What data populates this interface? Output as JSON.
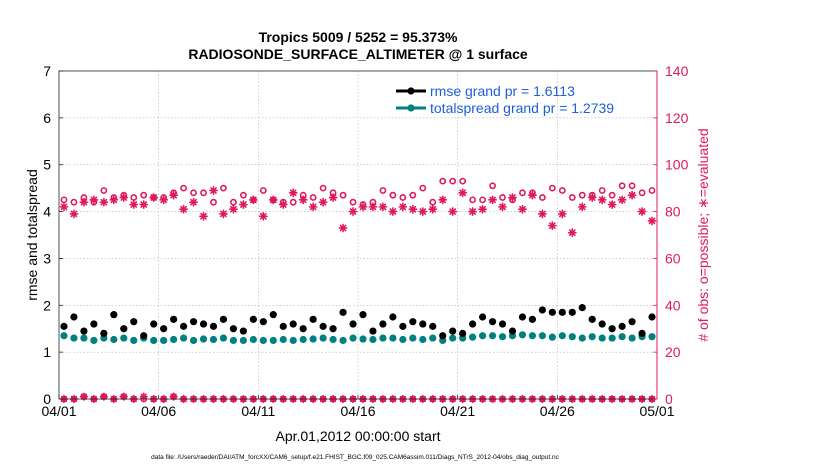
{
  "chart_data": {
    "type": "scatter",
    "title_line1": "Tropics 5009 / 5252 = 95.373%",
    "title_line2": "RADIOSONDE_SURFACE_ALTIMETER @ 1 surface",
    "xlabel": "Apr.01,2012 00:00:00 start",
    "ylabel_left": "rmse and totalspread",
    "ylabel_right": "# of obs: o=possible; ∗=evaluated",
    "footer": "data file: /Users/raeder/DAI/ATM_forcXX/CAM6_setup/f.e21.FHIST_BGC.f09_025.CAM6assim.011/Diags_NTrS_2012-04/obs_diag_output.nc",
    "x_range": [
      1,
      31
    ],
    "x_ticks": [
      1,
      6,
      11,
      16,
      21,
      26,
      31
    ],
    "x_tick_labels": [
      "04/01",
      "04/06",
      "04/11",
      "04/16",
      "04/21",
      "04/26",
      "05/01"
    ],
    "ylim_left": [
      0,
      7
    ],
    "y_ticks_left": [
      "0",
      "1",
      "2",
      "3",
      "4",
      "5",
      "6",
      "7"
    ],
    "ylim_right": [
      0,
      140
    ],
    "y_ticks_right": [
      "0",
      "20",
      "40",
      "60",
      "80",
      "100",
      "120",
      "140"
    ],
    "colors": {
      "rmse": "#000000",
      "spread": "#008080",
      "obs": "#e0195d",
      "legend_text": "#1f5fd6"
    },
    "legend": [
      {
        "name": "rmse",
        "label": "rmse grand pr = 1.6113"
      },
      {
        "name": "spread",
        "label": "totalspread grand pr = 1.2739"
      }
    ],
    "x": [
      1.25,
      1.75,
      2.25,
      2.75,
      3.25,
      3.75,
      4.25,
      4.75,
      5.25,
      5.75,
      6.25,
      6.75,
      7.25,
      7.75,
      8.25,
      8.75,
      9.25,
      9.75,
      10.25,
      10.75,
      11.25,
      11.75,
      12.25,
      12.75,
      13.25,
      13.75,
      14.25,
      14.75,
      15.25,
      15.75,
      16.25,
      16.75,
      17.25,
      17.75,
      18.25,
      18.75,
      19.25,
      19.75,
      20.25,
      20.75,
      21.25,
      21.75,
      22.25,
      22.75,
      23.25,
      23.75,
      24.25,
      24.75,
      25.25,
      25.75,
      26.25,
      26.75,
      27.25,
      27.75,
      28.25,
      28.75,
      29.25,
      29.75,
      30.25,
      30.75
    ],
    "series": [
      {
        "name": "rmse",
        "axis": "left",
        "values": [
          1.55,
          1.75,
          1.45,
          1.6,
          1.4,
          1.8,
          1.5,
          1.65,
          1.35,
          1.6,
          1.5,
          1.7,
          1.55,
          1.65,
          1.6,
          1.55,
          1.7,
          1.5,
          1.45,
          1.7,
          1.65,
          1.8,
          1.55,
          1.6,
          1.5,
          1.7,
          1.55,
          1.5,
          1.85,
          1.6,
          1.8,
          1.45,
          1.6,
          1.75,
          1.55,
          1.65,
          1.6,
          1.55,
          1.35,
          1.45,
          1.4,
          1.6,
          1.75,
          1.65,
          1.6,
          1.45,
          1.75,
          1.7,
          1.9,
          1.85,
          1.85,
          1.85,
          1.95,
          1.7,
          1.6,
          1.5,
          1.55,
          1.65,
          1.4,
          1.75
        ]
      },
      {
        "name": "totalspread",
        "axis": "left",
        "values": [
          1.35,
          1.3,
          1.3,
          1.25,
          1.3,
          1.27,
          1.3,
          1.25,
          1.3,
          1.25,
          1.25,
          1.27,
          1.3,
          1.25,
          1.28,
          1.27,
          1.3,
          1.25,
          1.25,
          1.27,
          1.25,
          1.25,
          1.27,
          1.25,
          1.27,
          1.28,
          1.3,
          1.27,
          1.25,
          1.3,
          1.28,
          1.27,
          1.3,
          1.3,
          1.27,
          1.3,
          1.27,
          1.3,
          1.25,
          1.3,
          1.3,
          1.32,
          1.35,
          1.35,
          1.33,
          1.35,
          1.37,
          1.35,
          1.35,
          1.32,
          1.35,
          1.33,
          1.3,
          1.33,
          1.3,
          1.3,
          1.33,
          1.3,
          1.33,
          1.33
        ]
      },
      {
        "name": "obs_possible",
        "axis": "right",
        "values": [
          85,
          84,
          86,
          84,
          89,
          86,
          87,
          86,
          87,
          86,
          86,
          88,
          90,
          88,
          88,
          84,
          90,
          84,
          87,
          85,
          89,
          85,
          84,
          84,
          87,
          86,
          90,
          88,
          87,
          84,
          83,
          84,
          89,
          87,
          86,
          87,
          90,
          84,
          93,
          93,
          93,
          85,
          85,
          91,
          86,
          85,
          88,
          88,
          86,
          90,
          89,
          86,
          87,
          87,
          89,
          87,
          91,
          91,
          88,
          89
        ]
      },
      {
        "name": "obs_evaluated",
        "axis": "right",
        "values": [
          82,
          79,
          84,
          85,
          84,
          85,
          86,
          83,
          83,
          86,
          85,
          87,
          81,
          84,
          78,
          89,
          79,
          81,
          83,
          85,
          78,
          85,
          83,
          88,
          85,
          82,
          84,
          86,
          73,
          80,
          82,
          82,
          82,
          80,
          82,
          81,
          80,
          81,
          85,
          80,
          88,
          80,
          81,
          85,
          82,
          86,
          81,
          87,
          79,
          74,
          79,
          71,
          82,
          86,
          85,
          83,
          85,
          87,
          80,
          76
        ]
      },
      {
        "name": "obs_possible_bottom",
        "axis": "right",
        "values": [
          0,
          0,
          1,
          0,
          1,
          0,
          1,
          0,
          0,
          0,
          0,
          1,
          0,
          0,
          0,
          0,
          0,
          0,
          0,
          0,
          0,
          0,
          0,
          0,
          0,
          0,
          0,
          0,
          0,
          0,
          0,
          0,
          0,
          0,
          0,
          0,
          0,
          0,
          0,
          0,
          0,
          0,
          0,
          0,
          0,
          0,
          0,
          0,
          0,
          0,
          0,
          0,
          0,
          0,
          0,
          0,
          0,
          0,
          0,
          0
        ]
      },
      {
        "name": "obs_evaluated_bottom",
        "axis": "right",
        "values": [
          0,
          0,
          1,
          0,
          1,
          0,
          1,
          0,
          1,
          0,
          0,
          1,
          0,
          0,
          0,
          0,
          0,
          0,
          0,
          0,
          0,
          0,
          0,
          0,
          0,
          0,
          0,
          0,
          0,
          0,
          0,
          0,
          0,
          0,
          0,
          0,
          0,
          0,
          0,
          0,
          0,
          0,
          0,
          0,
          0,
          0,
          0,
          0,
          0,
          0,
          0,
          0,
          0,
          0,
          0,
          0,
          0,
          0,
          0,
          0
        ]
      }
    ]
  }
}
